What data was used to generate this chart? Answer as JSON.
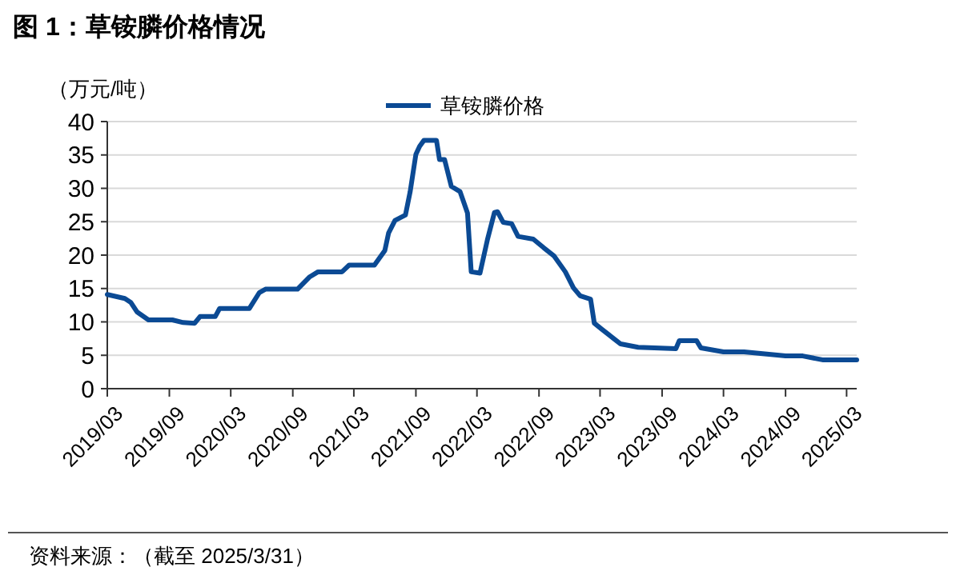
{
  "chart_data": {
    "type": "line",
    "title": "图 1：草铵膦价格情况",
    "ylabel": "（万元/吨）",
    "annotations": [
      "资料来源：（截至 2025/3/31）"
    ],
    "x": [
      "2019-03-01",
      "2019-04-22",
      "2019-05-10",
      "2019-05-28",
      "2019-07-01",
      "2019-09-10",
      "2019-10-12",
      "2019-11-15",
      "2019-12-01",
      "2020-01-15",
      "2020-01-28",
      "2020-04-25",
      "2020-05-25",
      "2020-06-12",
      "2020-09-15",
      "2020-10-20",
      "2020-11-15",
      "2021-01-25",
      "2021-02-15",
      "2021-05-01",
      "2021-06-01",
      "2021-06-12",
      "2021-07-01",
      "2021-08-01",
      "2021-08-15",
      "2021-09-01",
      "2021-09-12",
      "2021-09-25",
      "2021-11-01",
      "2021-11-10",
      "2021-11-25",
      "2021-12-15",
      "2022-01-10",
      "2022-02-01",
      "2022-02-12",
      "2022-03-10",
      "2022-04-01",
      "2022-04-22",
      "2022-05-01",
      "2022-05-18",
      "2022-06-12",
      "2022-07-01",
      "2022-08-15",
      "2022-09-15",
      "2022-10-15",
      "2022-11-18",
      "2022-12-12",
      "2023-01-01",
      "2023-02-01",
      "2023-02-12",
      "2023-03-06",
      "2023-05-01",
      "2023-06-22",
      "2023-10-12",
      "2023-10-22",
      "2023-12-12",
      "2023-12-25",
      "2024-03-01",
      "2024-05-01",
      "2024-09-01",
      "2024-10-22",
      "2024-12-22",
      "2025-03-31"
    ],
    "series": [
      {
        "name": "草铵膦价格",
        "color": "#0b4a94",
        "values": [
          14.1,
          13.5,
          12.9,
          11.5,
          10.3,
          10.3,
          9.9,
          9.8,
          10.8,
          10.8,
          12.0,
          12.0,
          14.4,
          14.9,
          14.9,
          16.7,
          17.5,
          17.5,
          18.5,
          18.5,
          20.7,
          23.3,
          25.2,
          26,
          29.5,
          35.1,
          36.3,
          37.2,
          37.2,
          34.3,
          34.3,
          30.3,
          29.5,
          26.3,
          17.5,
          17.3,
          22.3,
          26.4,
          26.5,
          24.9,
          24.7,
          22.8,
          22.4,
          21.1,
          19.9,
          17.5,
          15.1,
          13.9,
          13.4,
          9.8,
          8.9,
          6.7,
          6.2,
          6.0,
          7.2,
          7.2,
          6.1,
          5.5,
          5.5,
          4.9,
          4.9,
          4.3,
          4.3
        ]
      }
    ],
    "xlim": [
      "2019-03-01",
      "2025-03-31"
    ],
    "xticks": [
      {
        "value": "2019-03-01",
        "label": "2019/03"
      },
      {
        "value": "2019-09-01",
        "label": "2019/09"
      },
      {
        "value": "2020-03-01",
        "label": "2020/03"
      },
      {
        "value": "2020-09-01",
        "label": "2020/09"
      },
      {
        "value": "2021-03-01",
        "label": "2021/03"
      },
      {
        "value": "2021-09-01",
        "label": "2021/09"
      },
      {
        "value": "2022-03-01",
        "label": "2022/03"
      },
      {
        "value": "2022-09-01",
        "label": "2022/09"
      },
      {
        "value": "2023-03-01",
        "label": "2023/03"
      },
      {
        "value": "2023-09-01",
        "label": "2023/09"
      },
      {
        "value": "2024-03-01",
        "label": "2024/03"
      },
      {
        "value": "2024-09-01",
        "label": "2024/09"
      },
      {
        "value": "2025-03-01",
        "label": "2025/03"
      }
    ],
    "ylim": [
      0,
      40
    ],
    "yticks": [
      0,
      5,
      10,
      15,
      20,
      25,
      30,
      35,
      40
    ],
    "grid": "y",
    "legend": "top",
    "marker": "none",
    "line_style": "solid"
  }
}
